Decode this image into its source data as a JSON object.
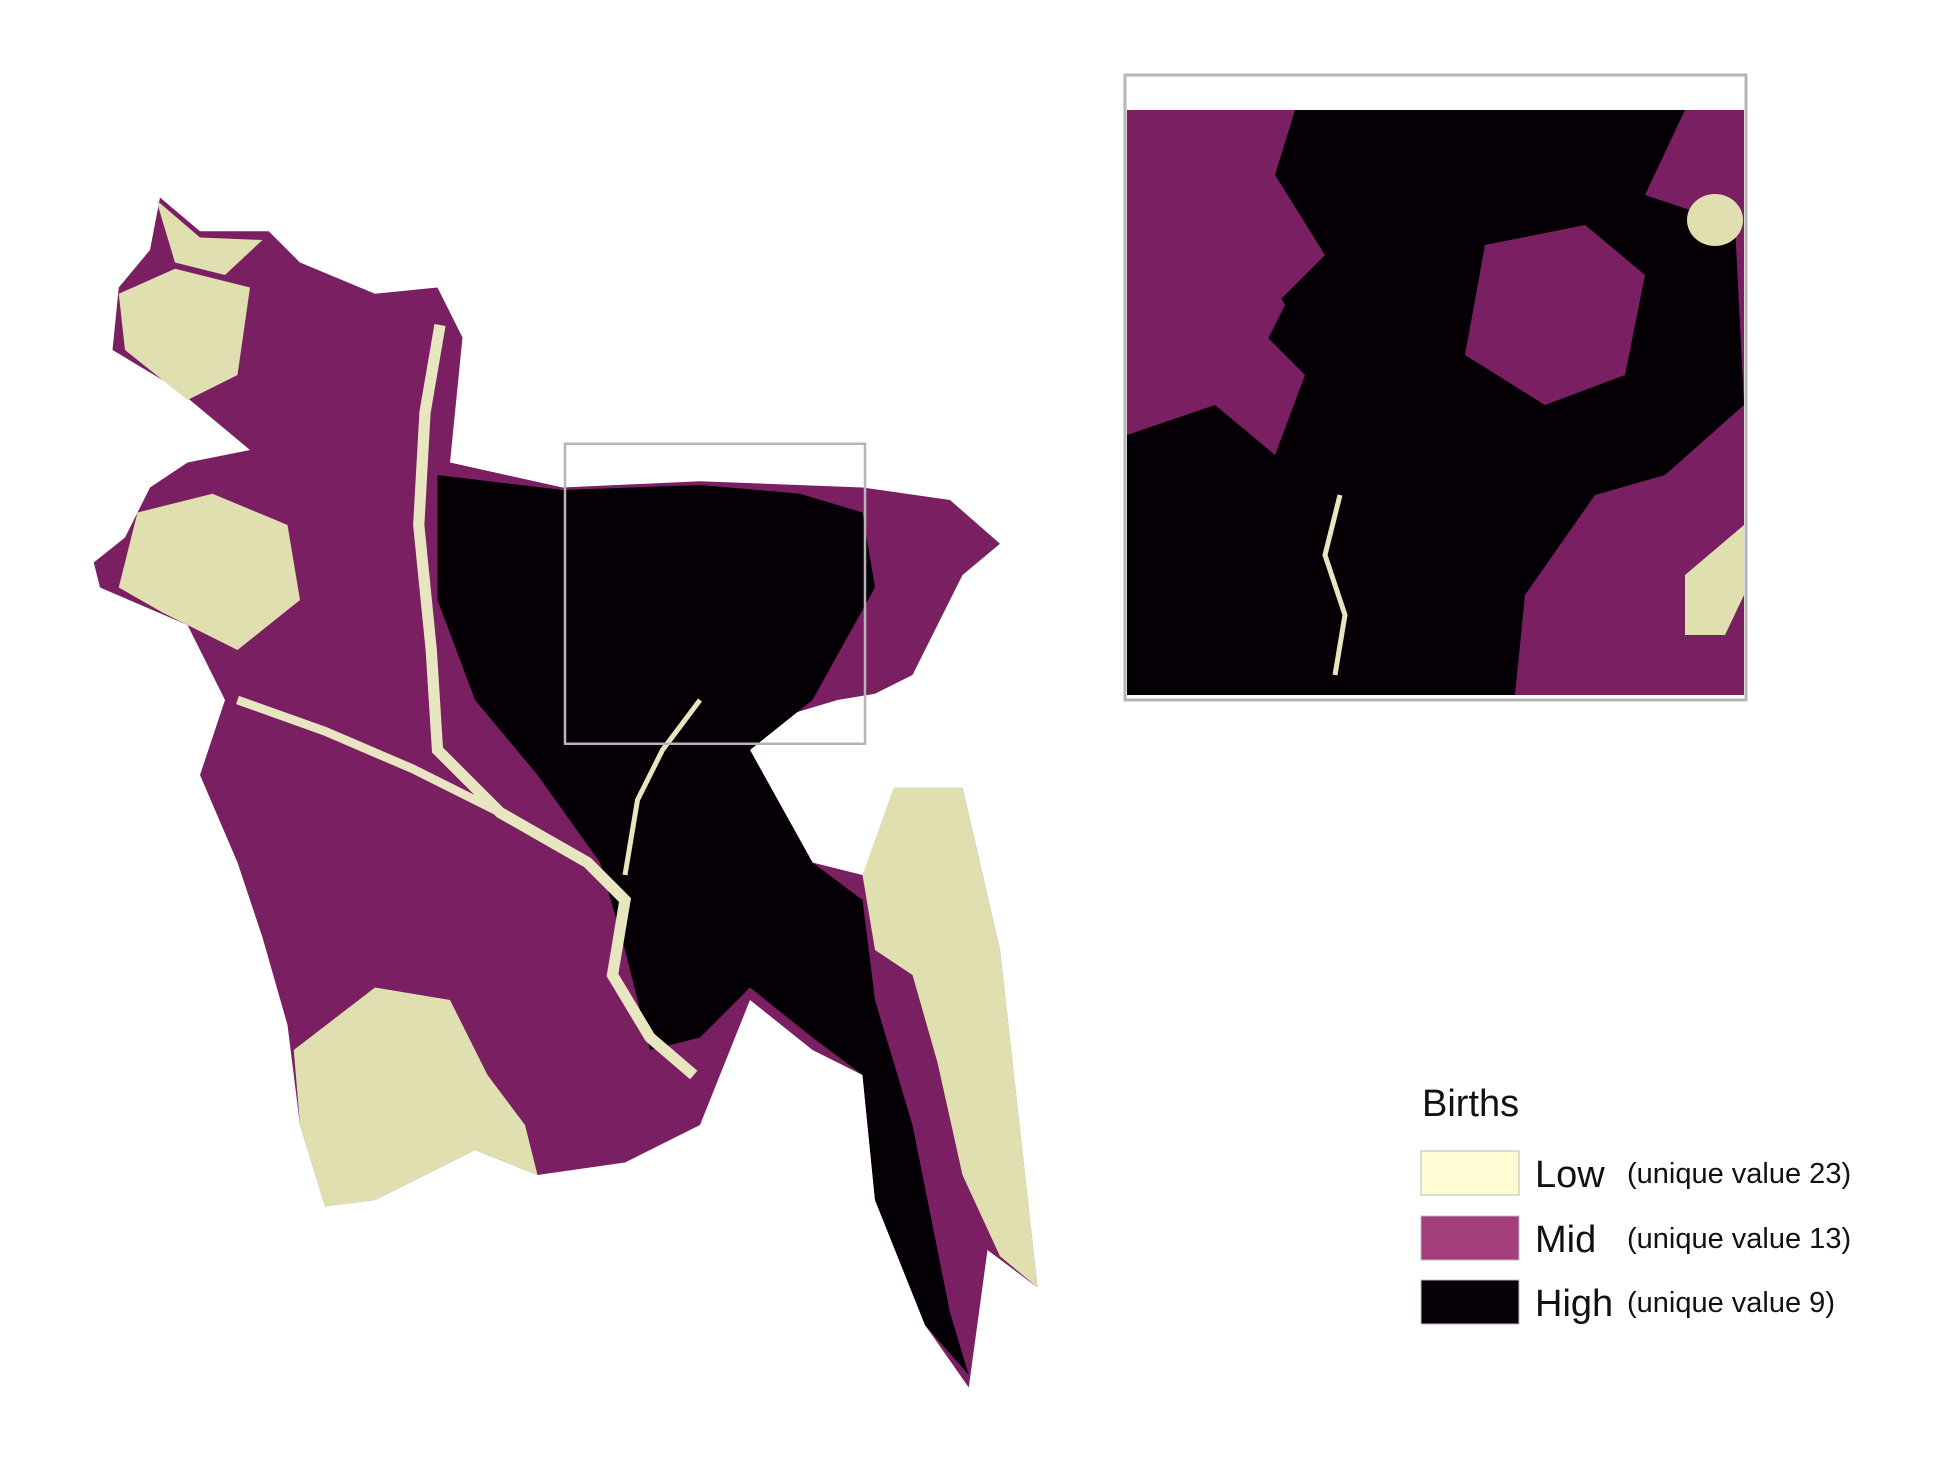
{
  "legend": {
    "title": "Births",
    "items": [
      {
        "label": "Low",
        "note": "(unique value 23)",
        "color": "#fffbd2"
      },
      {
        "label": "Mid",
        "note": "(unique value 13)",
        "color": "#a33e7a"
      },
      {
        "label": "High",
        "note": "(unique value 9)",
        "color": "#050005"
      }
    ]
  }
}
